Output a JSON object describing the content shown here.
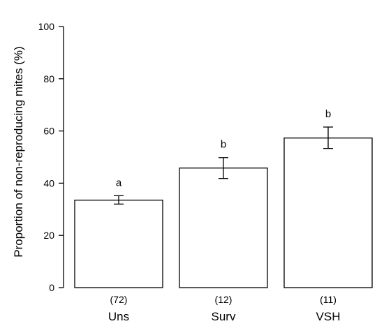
{
  "chart_data": {
    "type": "bar",
    "title": "",
    "xlabel": "",
    "ylabel": "Proportion of non-reproducing mites (%)",
    "ylim": [
      0,
      100
    ],
    "yticks": [
      0,
      20,
      40,
      60,
      80,
      100
    ],
    "categories": [
      "Uns",
      "Surv",
      "VSH"
    ],
    "values": [
      33.5,
      45.8,
      57.3
    ],
    "error_low": [
      32.0,
      41.8,
      53.3
    ],
    "error_high": [
      35.2,
      49.8,
      61.5
    ],
    "sample_sizes": [
      "(72)",
      "(12)",
      "(11)"
    ],
    "significance": [
      "a",
      "b",
      "b"
    ],
    "grid": false,
    "legend": "none",
    "colors": {
      "bar_fill": "#ffffff",
      "bar_stroke": "#000000"
    }
  }
}
